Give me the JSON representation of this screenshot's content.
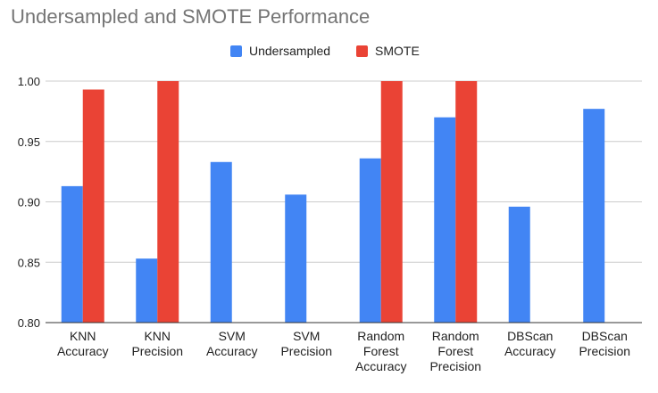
{
  "chart_data": {
    "type": "bar",
    "title": "Undersampled and SMOTE Performance",
    "xlabel": "",
    "ylabel": "",
    "ylim": [
      0.8,
      1.0
    ],
    "yticks": [
      "0.80",
      "0.85",
      "0.90",
      "0.95",
      "1.00"
    ],
    "grid": true,
    "legend_position": "top-center",
    "categories": [
      [
        "KNN",
        "Accuracy"
      ],
      [
        "KNN",
        "Precision"
      ],
      [
        "SVM",
        "Accuracy"
      ],
      [
        "SVM",
        "Precision"
      ],
      [
        "Random",
        "Forest",
        "Accuracy"
      ],
      [
        "Random",
        "Forest",
        "Precision"
      ],
      [
        "DBScan",
        "Accuracy"
      ],
      [
        "DBScan",
        "Precision"
      ]
    ],
    "series": [
      {
        "name": "Undersampled",
        "color": "#4285F4",
        "values": [
          0.913,
          0.853,
          0.933,
          0.906,
          0.936,
          0.97,
          0.896,
          0.977
        ]
      },
      {
        "name": "SMOTE",
        "color": "#EA4335",
        "values": [
          0.993,
          1.0,
          null,
          null,
          1.0,
          1.0,
          null,
          null
        ]
      }
    ]
  }
}
